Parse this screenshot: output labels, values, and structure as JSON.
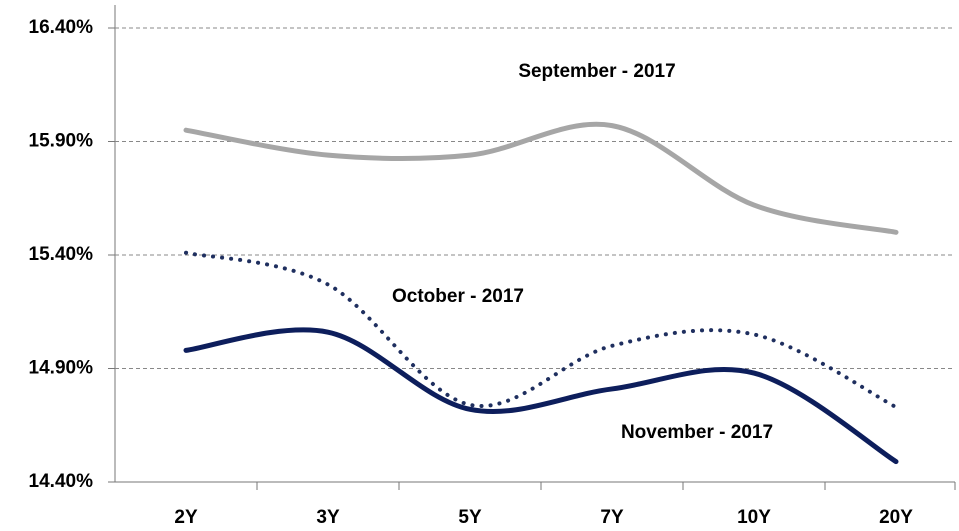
{
  "chart_data": {
    "type": "line",
    "categories": [
      "2Y",
      "3Y",
      "5Y",
      "7Y",
      "10Y",
      "20Y"
    ],
    "series": [
      {
        "name": "September - 2017",
        "color": "#a6a6a6",
        "style": "solid",
        "values": [
          15.95,
          15.84,
          15.84,
          15.97,
          15.62,
          15.5
        ]
      },
      {
        "name": "October - 2017",
        "color": "#1f2f5f",
        "style": "dotted",
        "values": [
          15.41,
          15.27,
          14.74,
          15.0,
          15.05,
          14.73
        ]
      },
      {
        "name": "November - 2017",
        "color": "#0d1e5c",
        "style": "solid",
        "values": [
          14.98,
          15.06,
          14.72,
          14.81,
          14.88,
          14.49
        ]
      }
    ],
    "ylim": [
      14.4,
      16.4
    ],
    "yticks": [
      {
        "value": 14.4,
        "label": "14.40%"
      },
      {
        "value": 14.9,
        "label": "14.90%"
      },
      {
        "value": 15.4,
        "label": "15.40%"
      },
      {
        "value": 15.9,
        "label": "15.90%"
      },
      {
        "value": 16.4,
        "label": "16.40%"
      }
    ],
    "grid": true
  }
}
